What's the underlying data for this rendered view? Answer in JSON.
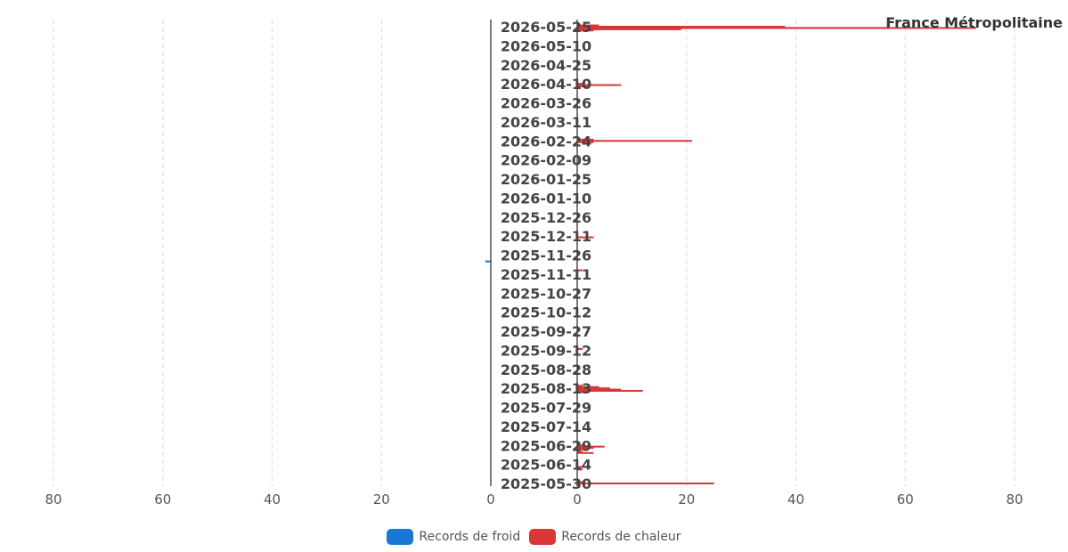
{
  "chart_data": {
    "type": "bar",
    "title": "France Métropolitaine",
    "orientation": "horizontal-butterfly",
    "left_panel": {
      "series": "Records de froid",
      "xlim": [
        0,
        80
      ],
      "ticks": [
        80,
        60,
        40,
        20,
        0
      ]
    },
    "right_panel": {
      "series": "Records de chaleur",
      "xlim": [
        0,
        80
      ],
      "ticks": [
        0,
        20,
        40,
        60,
        80
      ]
    },
    "y_tick_labels": [
      "2026-05-25",
      "2026-05-10",
      "2026-04-25",
      "2026-04-10",
      "2026-03-26",
      "2026-03-11",
      "2026-02-24",
      "2026-02-09",
      "2026-01-25",
      "2026-01-10",
      "2025-12-26",
      "2025-12-11",
      "2025-11-26",
      "2025-11-11",
      "2025-10-27",
      "2025-10-12",
      "2025-09-27",
      "2025-09-12",
      "2025-08-28",
      "2025-08-13",
      "2025-07-29",
      "2025-07-14",
      "2025-06-29",
      "2025-06-14",
      "2025-05-30"
    ],
    "date_range": [
      "2025-05-30",
      "2026-05-25"
    ],
    "grid": true,
    "legend_position": "bottom",
    "series": [
      {
        "name": "Records de froid",
        "color": "#1a77d6",
        "points": [
          {
            "date": "2025-11-21",
            "value": 1
          }
        ]
      },
      {
        "name": "Records de chaleur",
        "color": "#d93636",
        "points": [
          {
            "date": "2025-05-30",
            "value": 25
          },
          {
            "date": "2025-05-31",
            "value": 1
          },
          {
            "date": "2025-06-10",
            "value": 1
          },
          {
            "date": "2025-06-12",
            "value": 2
          },
          {
            "date": "2025-06-23",
            "value": 3
          },
          {
            "date": "2025-06-24",
            "value": 1
          },
          {
            "date": "2025-06-26",
            "value": 2
          },
          {
            "date": "2025-06-27",
            "value": 3
          },
          {
            "date": "2025-06-28",
            "value": 5
          },
          {
            "date": "2025-06-29",
            "value": 1
          },
          {
            "date": "2025-08-10",
            "value": 2
          },
          {
            "date": "2025-08-11",
            "value": 12
          },
          {
            "date": "2025-08-12",
            "value": 8
          },
          {
            "date": "2025-08-13",
            "value": 6
          },
          {
            "date": "2025-08-14",
            "value": 4
          },
          {
            "date": "2025-08-15",
            "value": 1
          },
          {
            "date": "2025-09-13",
            "value": 1
          },
          {
            "date": "2025-11-14",
            "value": 1
          },
          {
            "date": "2025-12-10",
            "value": 3
          },
          {
            "date": "2026-02-23",
            "value": 3
          },
          {
            "date": "2026-02-24",
            "value": 21
          },
          {
            "date": "2026-02-25",
            "value": 3
          },
          {
            "date": "2026-04-08",
            "value": 2
          },
          {
            "date": "2026-04-09",
            "value": 8
          },
          {
            "date": "2026-04-10",
            "value": 1
          },
          {
            "date": "2026-05-22",
            "value": 3
          },
          {
            "date": "2026-05-23",
            "value": 4
          },
          {
            "date": "2026-05-23",
            "value": 19
          },
          {
            "date": "2026-05-24",
            "value": 57
          },
          {
            "date": "2026-05-24",
            "value": 73
          },
          {
            "date": "2026-05-25",
            "value": 32
          },
          {
            "date": "2026-05-25",
            "value": 38
          },
          {
            "date": "2026-05-26",
            "value": 4
          }
        ]
      }
    ]
  },
  "legend": {
    "cold_label": "Records de froid",
    "hot_label": "Records de chaleur",
    "cold_color": "#1a77d6",
    "hot_color": "#d93636"
  }
}
